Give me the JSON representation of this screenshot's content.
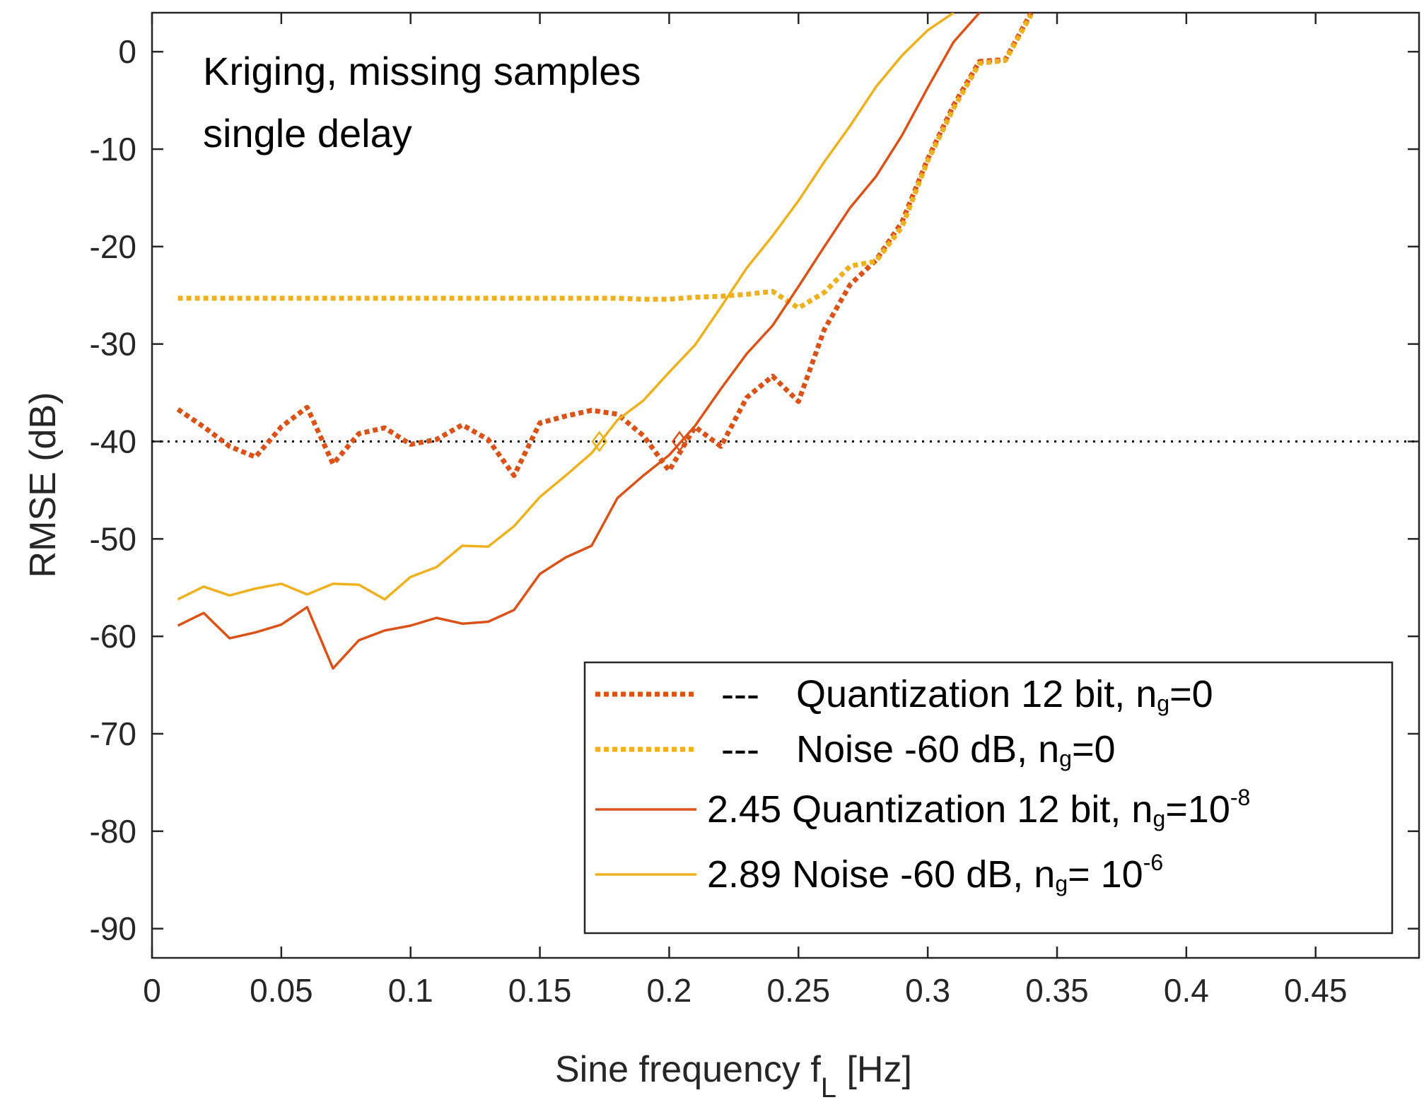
{
  "chart_data": {
    "type": "line",
    "title": "",
    "annotation_lines": [
      "Kriging, missing samples",
      "single delay"
    ],
    "xlabel": "Sine frequency f",
    "xlabel_subscript": "L",
    "xlabel_suffix": " [Hz]",
    "ylabel": "RMSE (dB)",
    "xlim": [
      0,
      0.49
    ],
    "ylim": [
      -93,
      4
    ],
    "xticks": [
      0,
      0.05,
      0.1,
      0.15,
      0.2,
      0.25,
      0.3,
      0.35,
      0.4,
      0.45
    ],
    "xtick_labels": [
      "0",
      "0.05",
      "0.1",
      "0.15",
      "0.2",
      "0.25",
      "0.3",
      "0.35",
      "0.4",
      "0.45"
    ],
    "yticks": [
      0,
      -10,
      -20,
      -30,
      -40,
      -50,
      -60,
      -70,
      -80,
      -90
    ],
    "ytick_labels": [
      "0",
      "-10",
      "-20",
      "-30",
      "-40",
      "-50",
      "-60",
      "-70",
      "-80",
      "-90"
    ],
    "reference_line": {
      "y": -40,
      "style": "dotted",
      "color": "#000000"
    },
    "legend_position": "bottom-right",
    "series": [
      {
        "id": "quant-ng0",
        "name": "Quantization 12 bit, n",
        "legend_prefix": "---",
        "legend_sub": "g",
        "legend_tail": "=0",
        "legend_sup": "",
        "style": "dotted",
        "color": "#D95319",
        "x": [
          0.01,
          0.02,
          0.03,
          0.04,
          0.05,
          0.06,
          0.07,
          0.08,
          0.09,
          0.1,
          0.11,
          0.12,
          0.13,
          0.14,
          0.15,
          0.16,
          0.17,
          0.18,
          0.19,
          0.2,
          0.21,
          0.22,
          0.23,
          0.24,
          0.25,
          0.26,
          0.27,
          0.28,
          0.29,
          0.3,
          0.31,
          0.32,
          0.33,
          0.34
        ],
        "y": [
          -36.7,
          -38.5,
          -40.5,
          -41.6,
          -38.5,
          -36.5,
          -42.3,
          -39.2,
          -38.6,
          -40.3,
          -39.8,
          -38.3,
          -39.8,
          -43.5,
          -38.1,
          -37.4,
          -36.8,
          -37.2,
          -39.4,
          -43.0,
          -38.5,
          -40.5,
          -35.5,
          -33.3,
          -35.9,
          -28.5,
          -23.9,
          -21.4,
          -17.5,
          -11.0,
          -5.5,
          -1.0,
          -0.8,
          4.0
        ]
      },
      {
        "id": "noise-ng0",
        "name": "Noise -60 dB, n",
        "legend_prefix": "---",
        "legend_sub": "g",
        "legend_tail": "=0",
        "legend_sup": "",
        "style": "dotted",
        "color": "#EDB120",
        "x": [
          0.01,
          0.02,
          0.03,
          0.04,
          0.05,
          0.06,
          0.07,
          0.08,
          0.09,
          0.1,
          0.11,
          0.12,
          0.13,
          0.14,
          0.15,
          0.16,
          0.17,
          0.18,
          0.19,
          0.2,
          0.21,
          0.22,
          0.23,
          0.24,
          0.25,
          0.26,
          0.27,
          0.28,
          0.29,
          0.3,
          0.31,
          0.32,
          0.33,
          0.34
        ],
        "y": [
          -25.3,
          -25.3,
          -25.3,
          -25.3,
          -25.3,
          -25.3,
          -25.3,
          -25.3,
          -25.3,
          -25.3,
          -25.3,
          -25.3,
          -25.3,
          -25.3,
          -25.3,
          -25.3,
          -25.3,
          -25.3,
          -25.4,
          -25.4,
          -25.2,
          -25.1,
          -24.9,
          -24.6,
          -26.3,
          -24.7,
          -22.0,
          -21.5,
          -18.0,
          -11.2,
          -5.8,
          -1.2,
          -0.9,
          3.8
        ]
      },
      {
        "id": "quant-ng1e-8",
        "name": "2.45 Quantization 12 bit, n",
        "legend_prefix": "",
        "legend_sub": "g",
        "legend_tail": "=10",
        "legend_sup": "-8",
        "style": "solid",
        "color": "#D95319",
        "x": [
          0.01,
          0.02,
          0.03,
          0.04,
          0.05,
          0.06,
          0.07,
          0.08,
          0.09,
          0.1,
          0.11,
          0.12,
          0.13,
          0.14,
          0.15,
          0.16,
          0.17,
          0.18,
          0.19,
          0.2,
          0.21,
          0.22,
          0.23,
          0.24,
          0.25,
          0.26,
          0.27,
          0.28,
          0.29,
          0.3,
          0.31,
          0.32
        ],
        "y": [
          -58.9,
          -57.6,
          -60.2,
          -59.6,
          -58.8,
          -57.0,
          -63.3,
          -60.4,
          -59.4,
          -58.9,
          -58.1,
          -58.7,
          -58.5,
          -57.3,
          -53.6,
          -51.9,
          -50.7,
          -45.8,
          -43.5,
          -41.4,
          -38.4,
          -34.6,
          -31.0,
          -28.1,
          -24.1,
          -20.0,
          -16.0,
          -12.8,
          -8.6,
          -3.7,
          1.0,
          4.0
        ]
      },
      {
        "id": "noise-ng1e-6",
        "name": "2.89 Noise -60 dB, n",
        "legend_prefix": "",
        "legend_sub": "g",
        "legend_tail": "= 10",
        "legend_sup": "-6",
        "style": "solid",
        "color": "#EDB120",
        "x": [
          0.01,
          0.02,
          0.03,
          0.04,
          0.05,
          0.06,
          0.07,
          0.08,
          0.09,
          0.1,
          0.11,
          0.12,
          0.13,
          0.14,
          0.15,
          0.16,
          0.17,
          0.18,
          0.19,
          0.2,
          0.21,
          0.22,
          0.23,
          0.24,
          0.25,
          0.26,
          0.27,
          0.28,
          0.29,
          0.3,
          0.31
        ],
        "y": [
          -56.2,
          -54.9,
          -55.8,
          -55.1,
          -54.6,
          -55.7,
          -54.6,
          -54.7,
          -56.2,
          -53.9,
          -52.9,
          -50.7,
          -50.8,
          -48.7,
          -45.7,
          -43.5,
          -41.2,
          -37.8,
          -35.8,
          -32.9,
          -30.1,
          -26.2,
          -22.2,
          -18.9,
          -15.3,
          -11.3,
          -7.6,
          -3.6,
          -0.4,
          2.2,
          4.0
        ]
      }
    ],
    "markers": [
      {
        "x": 0.173,
        "y": -40,
        "color": "#EDB120",
        "shape": "diamond"
      },
      {
        "x": 0.204,
        "y": -40,
        "color": "#D95319",
        "shape": "diamond"
      }
    ]
  }
}
